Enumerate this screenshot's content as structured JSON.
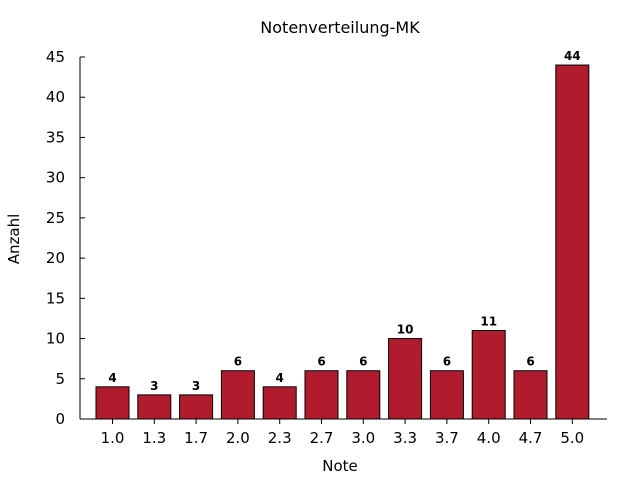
{
  "chart_data": {
    "type": "bar",
    "title": "Notenverteilung-MK",
    "xlabel": "Note",
    "ylabel": "Anzahl",
    "categories": [
      "1.0",
      "1.3",
      "1.7",
      "2.0",
      "2.3",
      "2.7",
      "3.0",
      "3.3",
      "3.7",
      "4.0",
      "4.7",
      "5.0"
    ],
    "values": [
      4,
      3,
      3,
      6,
      4,
      6,
      6,
      10,
      6,
      11,
      6,
      44
    ],
    "ylim": [
      0,
      45
    ],
    "yticks": [
      "0",
      "5",
      "10",
      "15",
      "20",
      "25",
      "30",
      "35",
      "40",
      "45"
    ],
    "grid": false,
    "bar_color": "#b01c2e"
  }
}
